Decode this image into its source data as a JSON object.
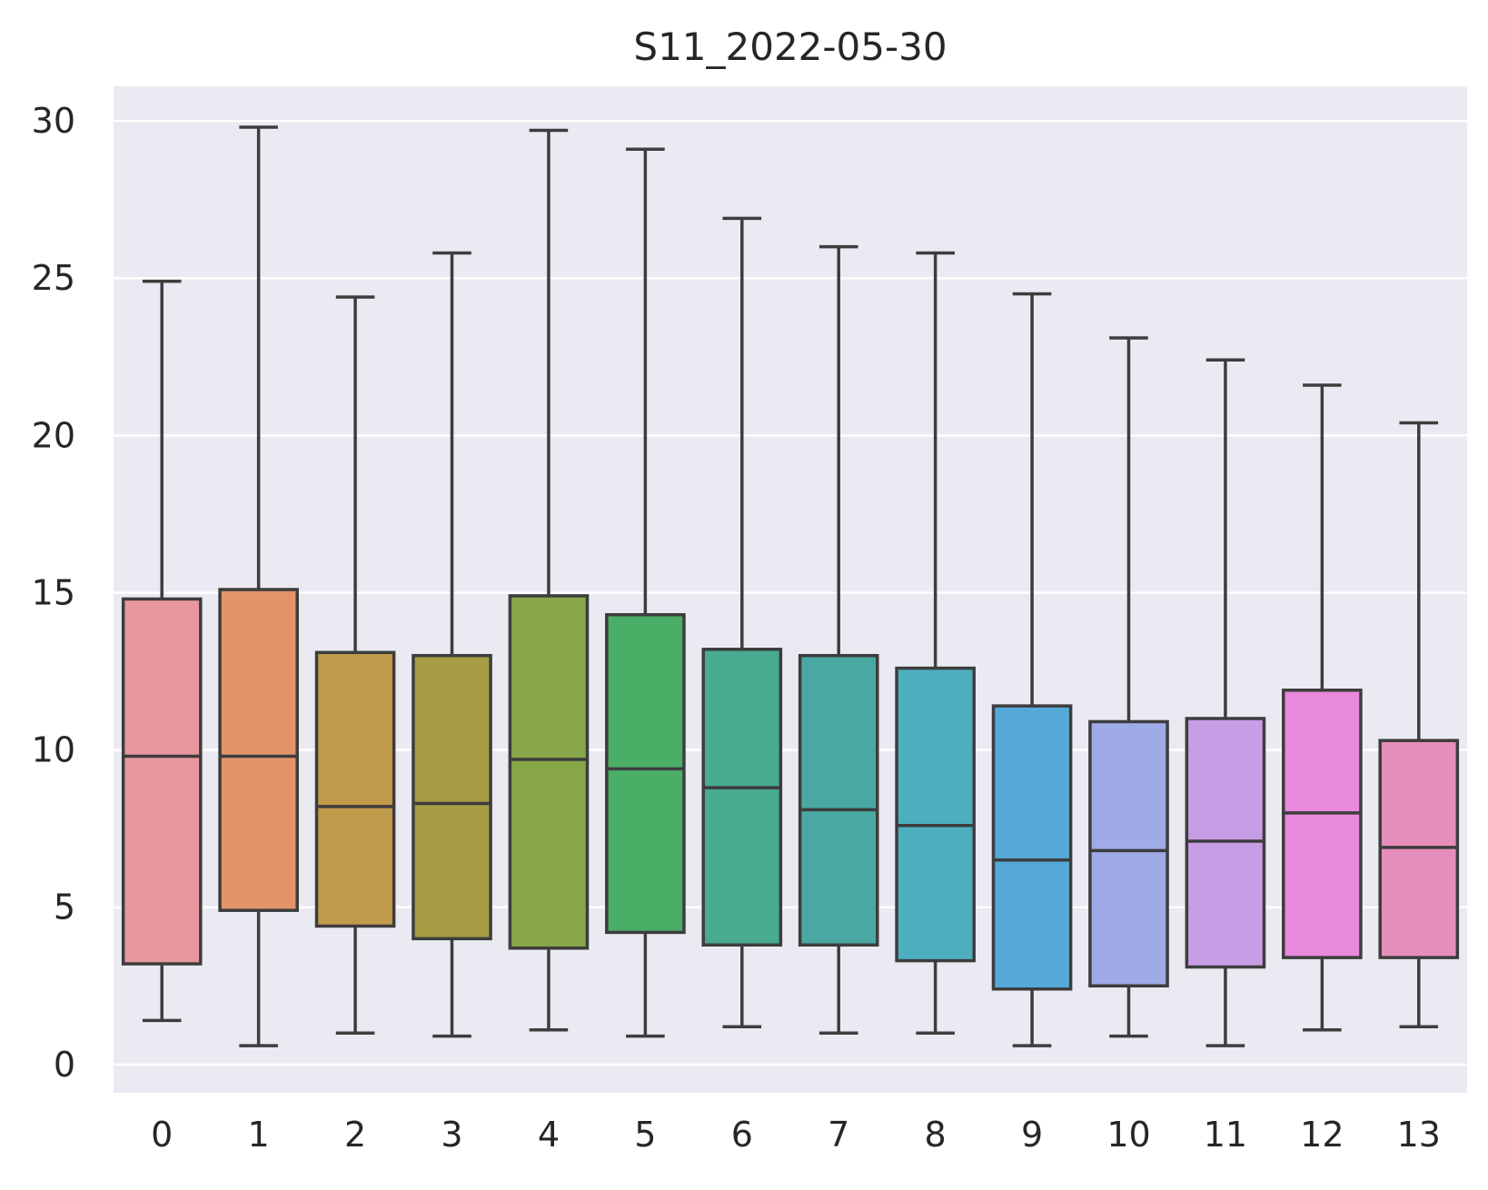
{
  "chart_data": {
    "type": "box",
    "title": "S11_2022-05-30",
    "xlabel": "",
    "ylabel": "",
    "ylim": [
      -0.9,
      31.1
    ],
    "yticks": [
      0,
      5,
      10,
      15,
      20,
      25,
      30
    ],
    "grid": true,
    "background": "#eaeaf2",
    "categories": [
      "0",
      "1",
      "2",
      "3",
      "4",
      "5",
      "6",
      "7",
      "8",
      "9",
      "10",
      "11",
      "12",
      "13"
    ],
    "boxes": [
      {
        "category": "0",
        "whisker_low": 1.4,
        "q1": 3.2,
        "median": 9.8,
        "q3": 14.8,
        "whisker_high": 24.9,
        "color": "#e8979f"
      },
      {
        "category": "1",
        "whisker_low": 0.6,
        "q1": 4.9,
        "median": 9.8,
        "q3": 15.1,
        "whisker_high": 29.8,
        "color": "#e3946b"
      },
      {
        "category": "2",
        "whisker_low": 1.0,
        "q1": 4.4,
        "median": 8.2,
        "q3": 13.1,
        "whisker_high": 24.4,
        "color": "#c19a4b"
      },
      {
        "category": "3",
        "whisker_low": 0.9,
        "q1": 4.0,
        "median": 8.3,
        "q3": 13.0,
        "whisker_high": 25.8,
        "color": "#a69d44"
      },
      {
        "category": "4",
        "whisker_low": 1.1,
        "q1": 3.7,
        "median": 9.7,
        "q3": 14.9,
        "whisker_high": 29.7,
        "color": "#87a647"
      },
      {
        "category": "5",
        "whisker_low": 0.9,
        "q1": 4.2,
        "median": 9.4,
        "q3": 14.3,
        "whisker_high": 29.1,
        "color": "#4aae66"
      },
      {
        "category": "6",
        "whisker_low": 1.2,
        "q1": 3.8,
        "median": 8.8,
        "q3": 13.2,
        "whisker_high": 26.9,
        "color": "#48ab8f"
      },
      {
        "category": "7",
        "whisker_low": 1.0,
        "q1": 3.8,
        "median": 8.1,
        "q3": 13.0,
        "whisker_high": 26.0,
        "color": "#4aa8a2"
      },
      {
        "category": "8",
        "whisker_low": 1.0,
        "q1": 3.3,
        "median": 7.6,
        "q3": 12.6,
        "whisker_high": 25.8,
        "color": "#4daec0"
      },
      {
        "category": "9",
        "whisker_low": 0.6,
        "q1": 2.4,
        "median": 6.5,
        "q3": 11.4,
        "whisker_high": 24.5,
        "color": "#55a9d9"
      },
      {
        "category": "10",
        "whisker_low": 0.9,
        "q1": 2.5,
        "median": 6.8,
        "q3": 10.9,
        "whisker_high": 23.1,
        "color": "#9eabe6"
      },
      {
        "category": "11",
        "whisker_low": 0.6,
        "q1": 3.1,
        "median": 7.1,
        "q3": 11.0,
        "whisker_high": 22.4,
        "color": "#c79de5"
      },
      {
        "category": "12",
        "whisker_low": 1.1,
        "q1": 3.4,
        "median": 8.0,
        "q3": 11.9,
        "whisker_high": 21.6,
        "color": "#e98add"
      },
      {
        "category": "13",
        "whisker_low": 1.2,
        "q1": 3.4,
        "median": 6.9,
        "q3": 10.3,
        "whisker_high": 20.4,
        "color": "#e68ebb"
      }
    ]
  }
}
